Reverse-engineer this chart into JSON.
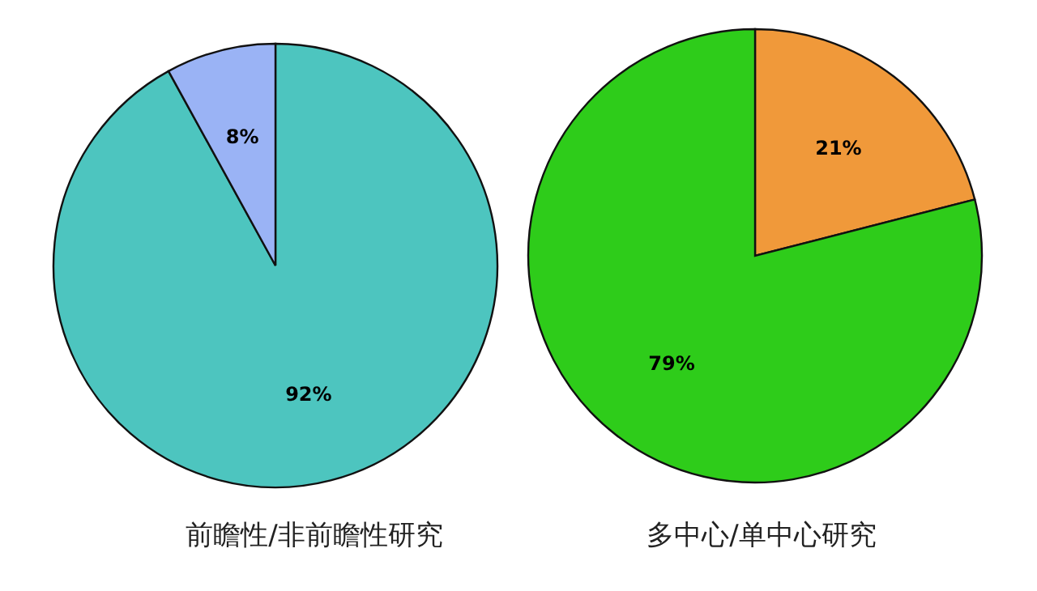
{
  "chart_data": [
    {
      "type": "pie",
      "title": "前瞻性/非前瞻性研究",
      "categories": [
        null,
        null
      ],
      "values": [
        92,
        8
      ],
      "colors": [
        "#4dc5bf",
        "#9ab3f5"
      ],
      "value_labels": [
        "92%",
        "8%"
      ]
    },
    {
      "type": "pie",
      "title": "多中心/单中心研究",
      "categories": [
        null,
        null
      ],
      "values": [
        21,
        79
      ],
      "colors": [
        "#f0993a",
        "#2ecc1a"
      ],
      "value_labels": [
        "21%",
        "79%"
      ]
    }
  ]
}
